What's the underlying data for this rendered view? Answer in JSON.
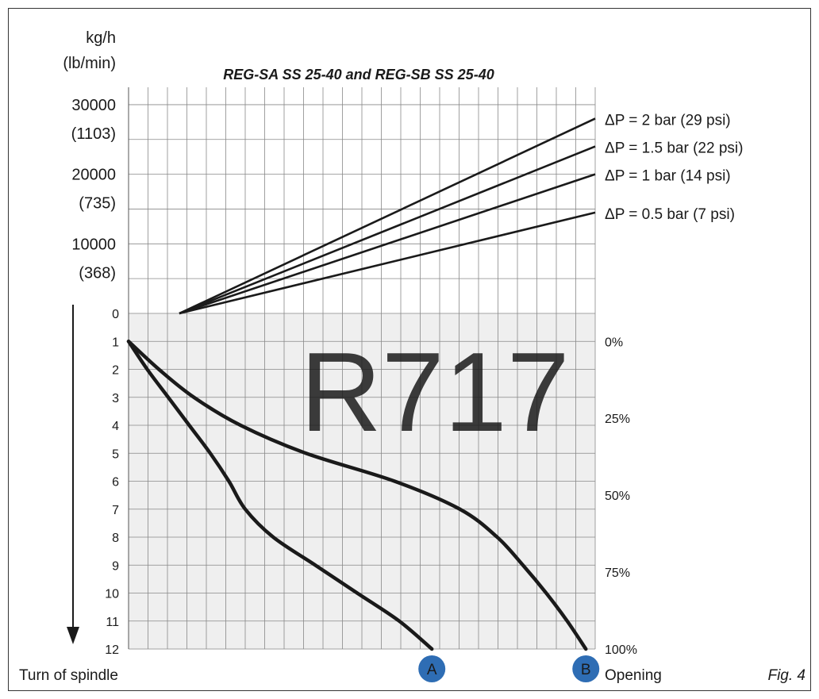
{
  "chart_data": {
    "type": "line",
    "title": "REG-SA SS 25-40 and REG-SB SS 25-40",
    "figure_label": "Fig. 4",
    "watermark": "R717",
    "capacity_panel": {
      "yunit_primary": "kg/h",
      "yunit_secondary": "(lb/min)",
      "ytick_kg": [
        "0",
        "10000",
        "20000",
        "30000"
      ],
      "ytick_kg_values": [
        0,
        10000,
        20000,
        30000
      ],
      "ytick_lb": [
        "(368)",
        "(735)",
        "(1103)"
      ],
      "ytick_lb_values": [
        10000,
        20000,
        30000
      ],
      "ylim": [
        0,
        32500
      ],
      "x_turns": [
        1,
        12
      ],
      "series": [
        {
          "name": "ΔP = 2 bar (29 psi)",
          "x": [
            1,
            12
          ],
          "y": [
            0,
            28000
          ]
        },
        {
          "name": "ΔP = 1.5 bar (22 psi)",
          "x": [
            1,
            12
          ],
          "y": [
            0,
            24000
          ]
        },
        {
          "name": "ΔP = 1 bar (14 psi)",
          "x": [
            1,
            12
          ],
          "y": [
            0,
            20000
          ]
        },
        {
          "name": "ΔP = 0.5 bar (7 psi)",
          "x": [
            1,
            12
          ],
          "y": [
            0,
            14500
          ]
        }
      ]
    },
    "opening_panel": {
      "xlabel": "Turn of spindle",
      "right_label": "Opening",
      "turn_ticks": [
        "0",
        "1",
        "2",
        "3",
        "4",
        "5",
        "6",
        "7",
        "8",
        "9",
        "10",
        "11",
        "12"
      ],
      "opening_ticks": [
        "0%",
        "25%",
        "50%",
        "75%",
        "100%"
      ],
      "opening_tick_values": [
        0,
        25,
        50,
        75,
        100
      ],
      "series": [
        {
          "name": "A",
          "turns": [
            1,
            2,
            3,
            4,
            5,
            6,
            7,
            8,
            9,
            10,
            11,
            12
          ],
          "opening": [
            0,
            4,
            8.5,
            13,
            17.5,
            21.5,
            25,
            31,
            40,
            49,
            58,
            65
          ]
        },
        {
          "name": "B",
          "turns": [
            1,
            2,
            3,
            4,
            5,
            6,
            7,
            8,
            9,
            10,
            11,
            12
          ],
          "opening": [
            0,
            6.5,
            14,
            24,
            38,
            57,
            71,
            79,
            84.5,
            89.5,
            94,
            98
          ]
        }
      ]
    },
    "colors": {
      "grid": "#888888",
      "shade": "#efefef",
      "line": "#1a1a1a",
      "watermark": "#8a8a8a",
      "marker": "#2e6db4"
    }
  }
}
